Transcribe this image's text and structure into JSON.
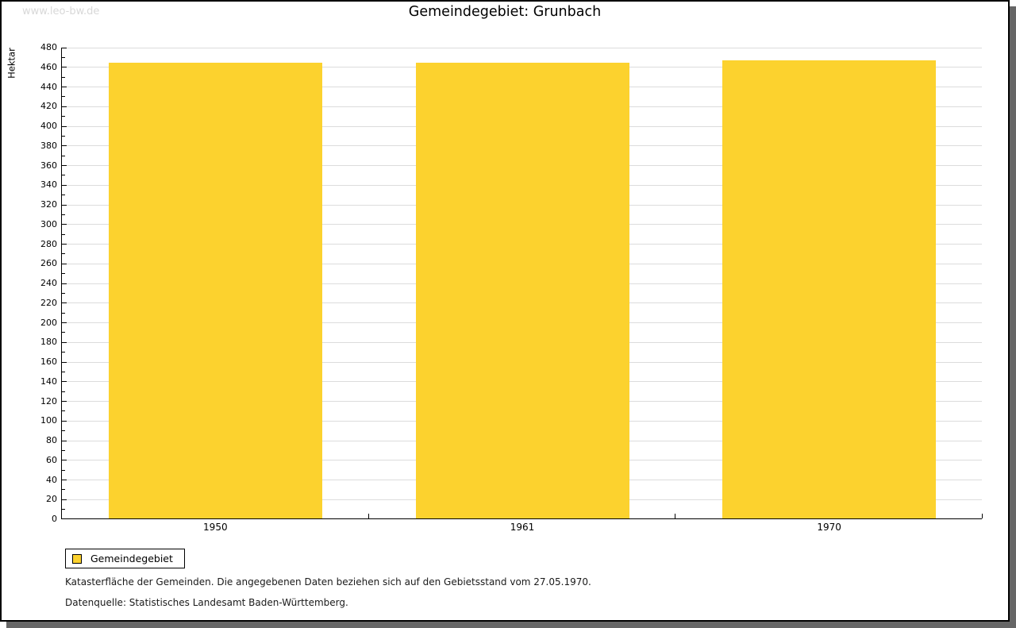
{
  "watermark": "www.leo-bw.de",
  "title": "Gemeindegebiet: Grunbach",
  "chart_data": {
    "type": "bar",
    "title": "Gemeindegebiet: Grunbach",
    "categories": [
      "1950",
      "1961",
      "1970"
    ],
    "series": [
      {
        "name": "Gemeindegebiet",
        "values": [
          464,
          464,
          466
        ],
        "color": "#fcd22e"
      }
    ],
    "xlabel": "",
    "ylabel": "Hektar",
    "ylim": [
      0,
      480
    ],
    "yticks": [
      0,
      20,
      40,
      60,
      80,
      100,
      120,
      140,
      160,
      180,
      200,
      220,
      240,
      260,
      280,
      300,
      320,
      340,
      360,
      380,
      400,
      420,
      440,
      460,
      480
    ],
    "minor_tick_interval": 10,
    "grid": true,
    "legend_position": "bottom-left"
  },
  "legend": {
    "items": [
      {
        "label": "Gemeindegebiet",
        "color": "#fcd22e"
      }
    ]
  },
  "footnotes": [
    "Katasterfläche der Gemeinden. Die angegebenen Daten beziehen sich auf den Gebietsstand vom 27.05.1970.",
    "Datenquelle: Statistisches Landesamt Baden-Württemberg."
  ],
  "colors": {
    "bar": "#fcd22e",
    "gridline": "#dcdcdc",
    "axis": "#000000",
    "watermark": "#d8d8d8",
    "frame_shadow": "#666666",
    "background": "#ffffff"
  }
}
